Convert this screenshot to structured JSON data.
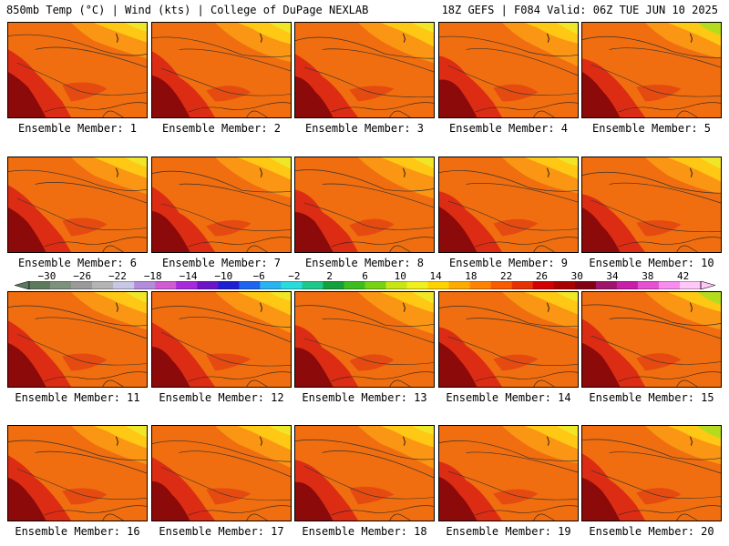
{
  "header": {
    "left": "850mb Temp (°C) | Wind (kts) | College of DuPage NEXLAB",
    "right": "18Z GEFS | F084 Valid: 06Z TUE JUN 10 2025"
  },
  "member_label_prefix": "Ensemble Member: ",
  "members": [
    1,
    2,
    3,
    4,
    5,
    6,
    7,
    8,
    9,
    10,
    11,
    12,
    13,
    14,
    15,
    16,
    17,
    18,
    19,
    20
  ],
  "colorbar": {
    "ticks": [
      -30,
      -26,
      -22,
      -18,
      -14,
      -10,
      -6,
      -2,
      2,
      6,
      10,
      14,
      18,
      22,
      26,
      30,
      34,
      38,
      42
    ],
    "tick_labels": [
      "−30",
      "−26",
      "−22",
      "−18",
      "−14",
      "−10",
      "−6",
      "−2",
      "2",
      "6",
      "10",
      "14",
      "18",
      "22",
      "26",
      "30",
      "34",
      "38",
      "42"
    ],
    "range": [
      -32,
      44
    ],
    "colors": [
      "#5d7a5d",
      "#7d917d",
      "#9a9a9a",
      "#b4b4b4",
      "#c8c8e6",
      "#b48cdc",
      "#d25ad2",
      "#aa28dc",
      "#6e14c8",
      "#1e1ed2",
      "#1e64f0",
      "#28b4f0",
      "#28dcdc",
      "#1ec88c",
      "#14a03c",
      "#3cbe1e",
      "#78d214",
      "#c8e614",
      "#f0f01e",
      "#ffd200",
      "#ffaa00",
      "#ff8200",
      "#fa5a00",
      "#e63200",
      "#d20000",
      "#aa0000",
      "#820014",
      "#a0146e",
      "#c81eaa",
      "#e650d2",
      "#fa8cf0",
      "#ffc8f8"
    ]
  },
  "map_palette": {
    "hot": "#8c0a0a",
    "warm": "#dc2d14",
    "mid": "#f06e0f",
    "cool": "#fa9614",
    "light": "#ffc814",
    "pale": "#f0e628",
    "green": "#b4dc1e"
  }
}
